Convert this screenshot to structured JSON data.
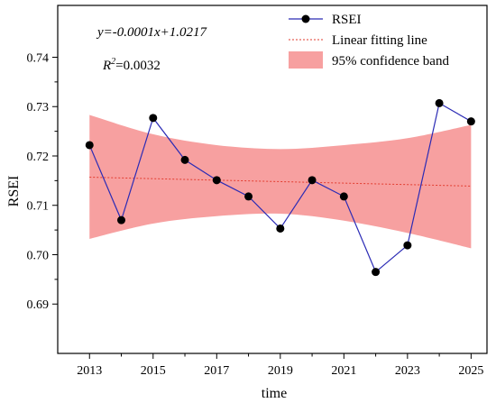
{
  "chart_data": {
    "type": "line",
    "xlabel": "time",
    "ylabel": "RSEI",
    "xlim": [
      2012.0,
      2025.5
    ],
    "ylim": [
      0.68,
      0.7505
    ],
    "x_ticks": [
      2013,
      2015,
      2017,
      2019,
      2021,
      2023,
      2025
    ],
    "y_ticks": [
      0.69,
      0.7,
      0.71,
      0.72,
      0.73,
      0.74
    ],
    "y_tick_labels": [
      "0.69",
      "0.70",
      "0.71",
      "0.72",
      "0.73",
      "0.74"
    ],
    "grid": false,
    "legend_position": "top-right",
    "series": [
      {
        "name": "RSEI",
        "color": "#2b2bb5",
        "marker_color": "#000000",
        "x": [
          2013,
          2014,
          2015,
          2016,
          2017,
          2018,
          2019,
          2020,
          2021,
          2022,
          2023,
          2024,
          2025
        ],
        "y": [
          0.7222,
          0.707,
          0.7277,
          0.7192,
          0.7151,
          0.7118,
          0.7053,
          0.7151,
          0.7118,
          0.6965,
          0.7019,
          0.7307,
          0.727
        ]
      }
    ],
    "fit": {
      "name": "Linear fitting line",
      "color": "#e23b2e",
      "slope": -0.0001,
      "intercept": 1.0217,
      "x_range": [
        2013,
        2025
      ],
      "y_values": [
        0.7157,
        0.7139
      ]
    },
    "confidence_band": {
      "name": "95% confidence band",
      "color": "#f7a0a0",
      "x": [
        2013,
        2015,
        2017,
        2019,
        2021,
        2023,
        2025
      ],
      "upper": [
        0.7283,
        0.7244,
        0.7222,
        0.7214,
        0.7222,
        0.7236,
        0.7263
      ],
      "lower": [
        0.7032,
        0.7063,
        0.7078,
        0.7083,
        0.7069,
        0.7044,
        0.7013
      ]
    },
    "annotations": {
      "equation": "y=-0.0001x+1.0217",
      "r2_label": "R",
      "r2_sup": "2",
      "r2_value": "=0.0032"
    }
  }
}
